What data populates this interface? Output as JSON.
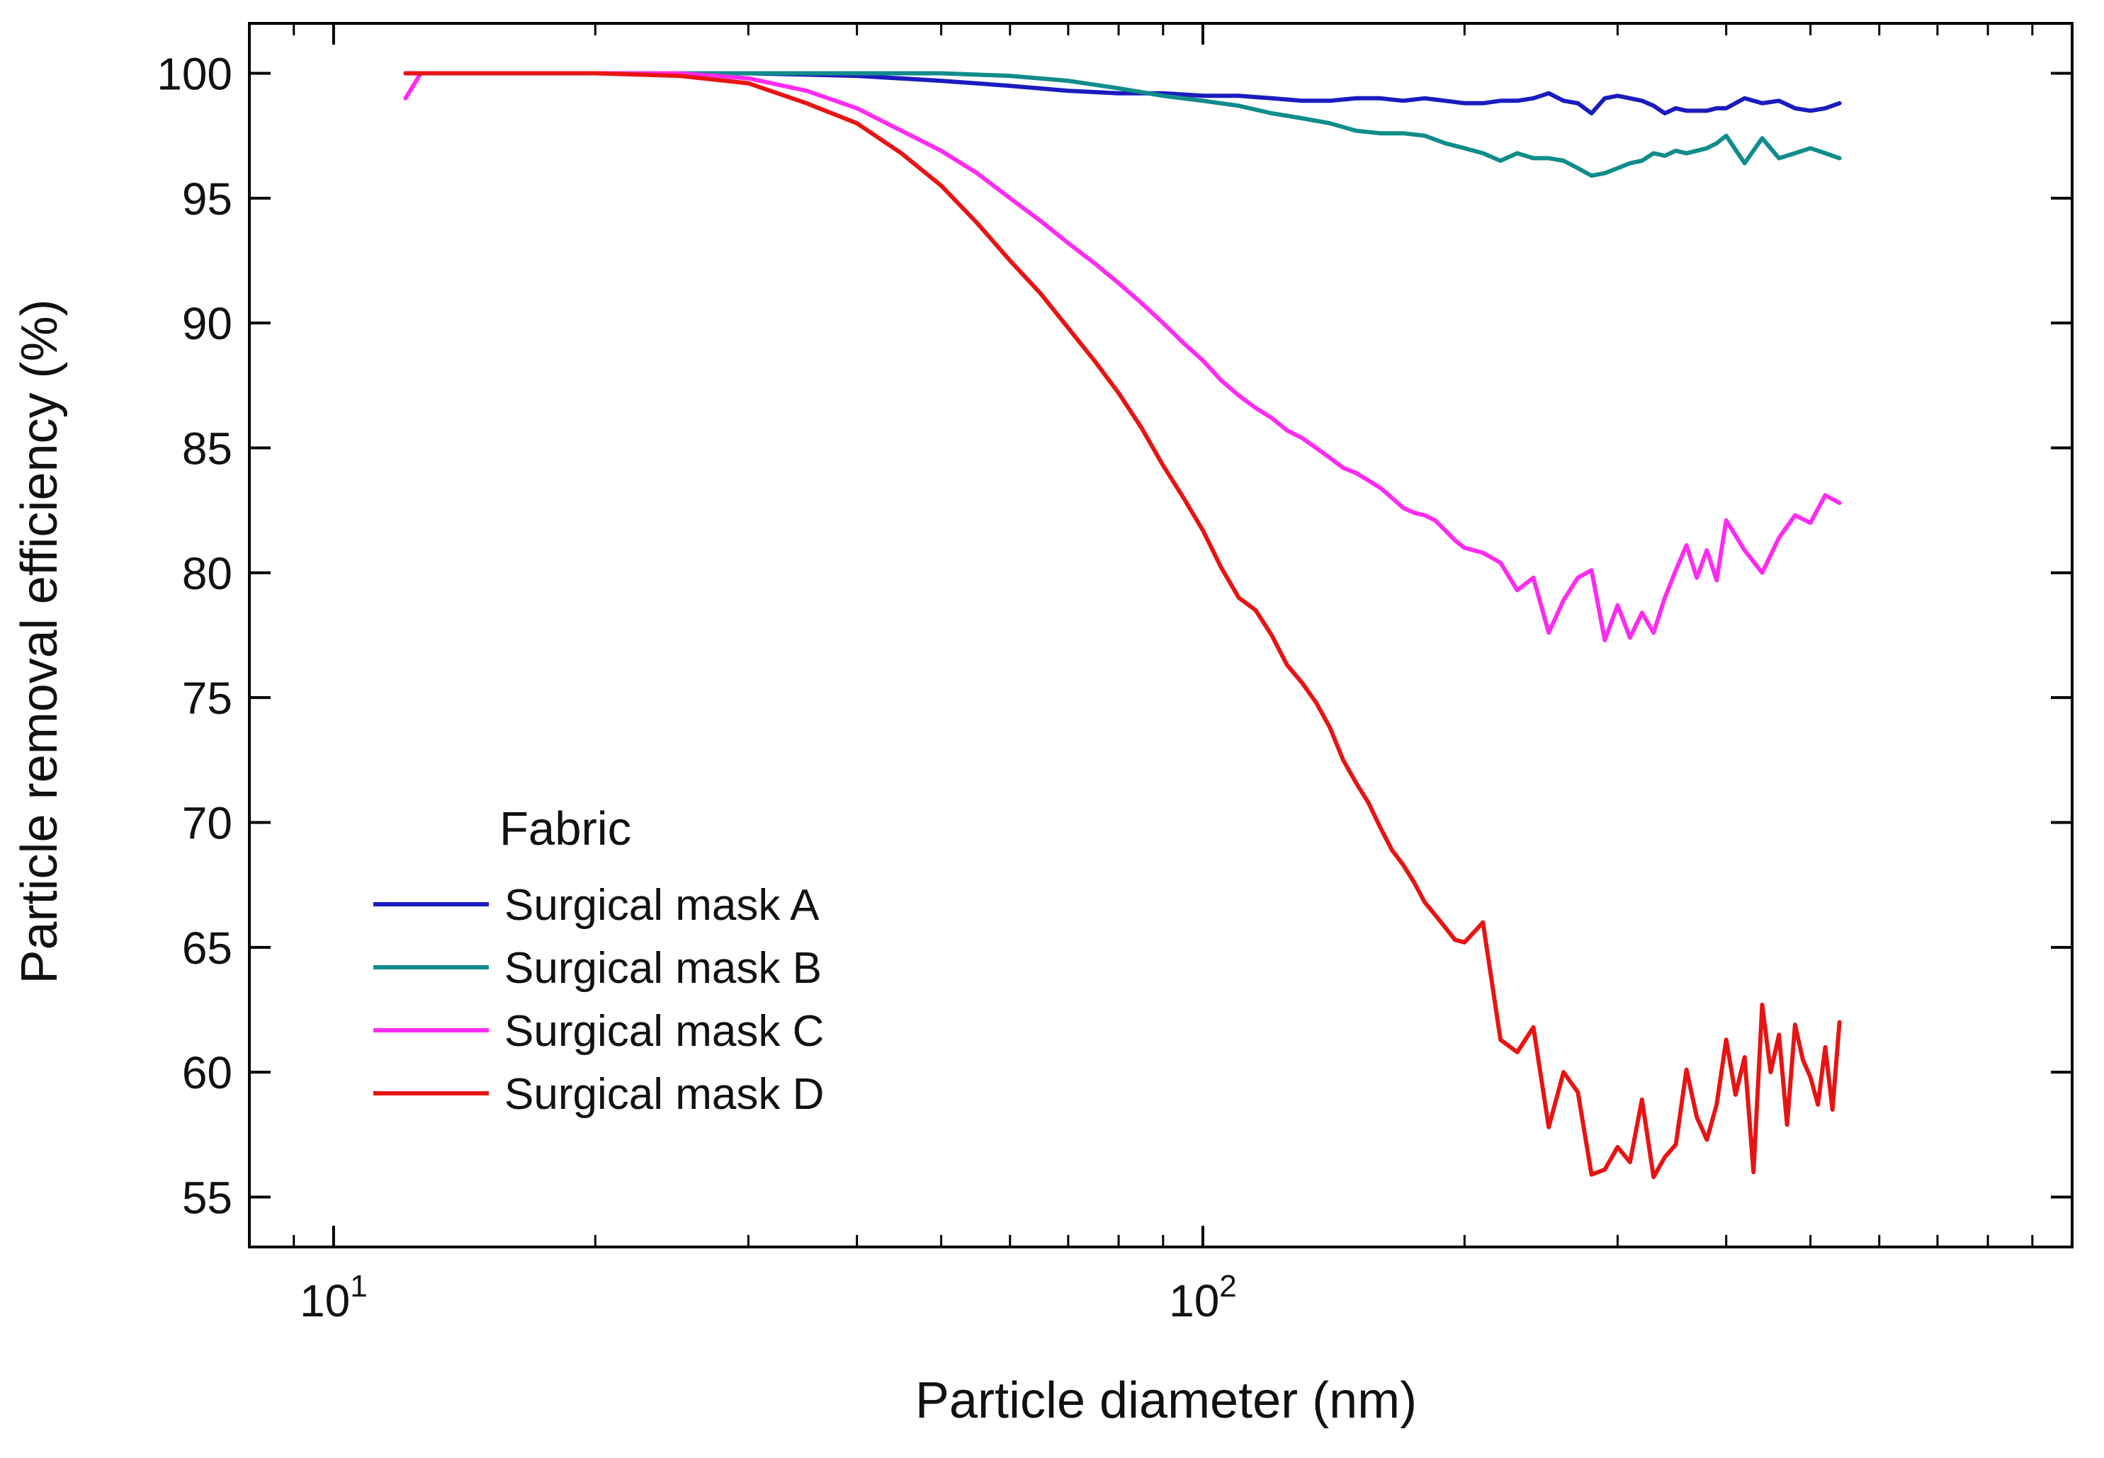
{
  "chart_data": {
    "type": "line",
    "title": "",
    "xlabel": "Particle diameter (nm)",
    "ylabel": "Particle removal efficiency  (%)",
    "xscale": "log",
    "xlim": [
      8,
      1000
    ],
    "ylim": [
      53,
      102
    ],
    "yticks": [
      55,
      60,
      65,
      70,
      75,
      80,
      85,
      90,
      95,
      100
    ],
    "xticks": [
      {
        "base": "10",
        "exp": "1",
        "value": 10
      },
      {
        "base": "10",
        "exp": "2",
        "value": 100
      }
    ],
    "grid": false,
    "legend": {
      "title": "Fabric",
      "placement": "lower-left"
    },
    "series": [
      {
        "name": "Surgical mask A",
        "color": "#1b1bbf",
        "x": [
          12.1,
          14,
          16,
          20,
          25,
          30,
          40,
          50,
          60,
          70,
          80,
          90,
          100,
          110,
          120,
          130,
          140,
          150,
          160,
          170,
          180,
          190,
          200,
          210,
          220,
          230,
          240,
          250,
          260,
          270,
          280,
          290,
          300,
          310,
          320,
          330,
          340,
          350,
          360,
          370,
          380,
          390,
          400,
          420,
          440,
          460,
          480,
          500,
          520,
          540
        ],
        "y": [
          100,
          100,
          100,
          100,
          100,
          100,
          99.9,
          99.7,
          99.5,
          99.3,
          99.2,
          99.2,
          99.1,
          99.1,
          99.0,
          98.9,
          98.9,
          99.0,
          99.0,
          98.9,
          99.0,
          98.9,
          98.8,
          98.8,
          98.9,
          98.9,
          99.0,
          99.2,
          98.9,
          98.8,
          98.4,
          99.0,
          99.1,
          99.0,
          98.9,
          98.7,
          98.4,
          98.6,
          98.5,
          98.5,
          98.5,
          98.6,
          98.6,
          99.0,
          98.8,
          98.9,
          98.6,
          98.5,
          98.6,
          98.8
        ]
      },
      {
        "name": "Surgical mask B",
        "color": "#118c8c",
        "x": [
          12.1,
          14,
          16,
          20,
          25,
          30,
          40,
          50,
          60,
          70,
          80,
          90,
          100,
          110,
          120,
          130,
          140,
          150,
          160,
          170,
          180,
          190,
          200,
          210,
          220,
          230,
          240,
          250,
          260,
          270,
          280,
          290,
          300,
          310,
          320,
          330,
          340,
          350,
          360,
          370,
          380,
          390,
          400,
          420,
          440,
          460,
          480,
          500,
          520,
          540
        ],
        "y": [
          100,
          100,
          100,
          100,
          100,
          100,
          100,
          100,
          99.9,
          99.7,
          99.4,
          99.1,
          98.9,
          98.7,
          98.4,
          98.2,
          98.0,
          97.7,
          97.6,
          97.6,
          97.5,
          97.2,
          97.0,
          96.8,
          96.5,
          96.8,
          96.6,
          96.6,
          96.5,
          96.2,
          95.9,
          96.0,
          96.2,
          96.4,
          96.5,
          96.8,
          96.7,
          96.9,
          96.8,
          96.9,
          97.0,
          97.2,
          97.5,
          96.4,
          97.4,
          96.6,
          96.8,
          97.0,
          96.8,
          96.6
        ]
      },
      {
        "name": "Surgical mask C",
        "color": "#ff2bf0",
        "x": [
          12.1,
          12.6,
          14,
          16,
          20,
          25,
          30,
          35,
          40,
          45,
          50,
          55,
          60,
          65,
          70,
          75,
          80,
          85,
          90,
          95,
          100,
          105,
          110,
          115,
          120,
          125,
          130,
          135,
          140,
          145,
          150,
          155,
          160,
          165,
          170,
          175,
          180,
          185,
          190,
          195,
          200,
          210,
          220,
          230,
          240,
          250,
          260,
          270,
          280,
          290,
          300,
          310,
          320,
          330,
          340,
          350,
          360,
          370,
          380,
          390,
          400,
          420,
          440,
          460,
          480,
          500,
          520,
          540
        ],
        "y": [
          99.0,
          100,
          100,
          100,
          100,
          100,
          99.8,
          99.3,
          98.6,
          97.7,
          96.9,
          96.0,
          95.0,
          94.1,
          93.2,
          92.4,
          91.6,
          90.8,
          90.0,
          89.2,
          88.5,
          87.7,
          87.1,
          86.6,
          86.2,
          85.7,
          85.4,
          85.0,
          84.6,
          84.2,
          84.0,
          83.7,
          83.4,
          83.0,
          82.6,
          82.4,
          82.3,
          82.1,
          81.7,
          81.3,
          81.0,
          80.8,
          80.4,
          79.3,
          79.8,
          77.6,
          78.9,
          79.8,
          80.1,
          77.3,
          78.7,
          77.4,
          78.4,
          77.6,
          79.0,
          80.1,
          81.1,
          79.8,
          80.9,
          79.7,
          82.1,
          80.9,
          80.0,
          81.4,
          82.3,
          82.0,
          83.1,
          82.8
        ]
      },
      {
        "name": "Surgical mask D",
        "color": "#e81414",
        "x": [
          12.1,
          14,
          16,
          20,
          25,
          30,
          35,
          40,
          45,
          50,
          55,
          60,
          65,
          70,
          75,
          80,
          85,
          90,
          95,
          100,
          105,
          110,
          115,
          120,
          125,
          130,
          135,
          140,
          145,
          150,
          155,
          160,
          165,
          170,
          175,
          180,
          185,
          190,
          195,
          200,
          205,
          210,
          220,
          230,
          240,
          250,
          260,
          270,
          280,
          290,
          300,
          310,
          320,
          330,
          340,
          350,
          360,
          370,
          380,
          390,
          400,
          410,
          420,
          430,
          440,
          450,
          460,
          470,
          480,
          490,
          500,
          510,
          520,
          530,
          540
        ],
        "y": [
          100,
          100,
          100,
          100,
          99.9,
          99.6,
          98.8,
          98.0,
          96.8,
          95.5,
          94.0,
          92.5,
          91.2,
          89.8,
          88.5,
          87.2,
          85.8,
          84.3,
          83.0,
          81.7,
          80.2,
          79.0,
          78.5,
          77.5,
          76.3,
          75.6,
          74.8,
          73.8,
          72.5,
          71.6,
          70.8,
          69.8,
          68.9,
          68.3,
          67.6,
          66.8,
          66.3,
          65.8,
          65.3,
          65.2,
          65.6,
          66.0,
          61.3,
          60.8,
          61.8,
          57.8,
          60.0,
          59.2,
          55.9,
          56.1,
          57.0,
          56.4,
          58.9,
          55.8,
          56.6,
          57.1,
          60.1,
          58.2,
          57.3,
          58.7,
          61.3,
          59.1,
          60.6,
          56.0,
          62.7,
          60.0,
          61.5,
          57.9,
          61.9,
          60.5,
          59.8,
          58.7,
          61.0,
          58.5,
          62.0
        ]
      }
    ]
  }
}
